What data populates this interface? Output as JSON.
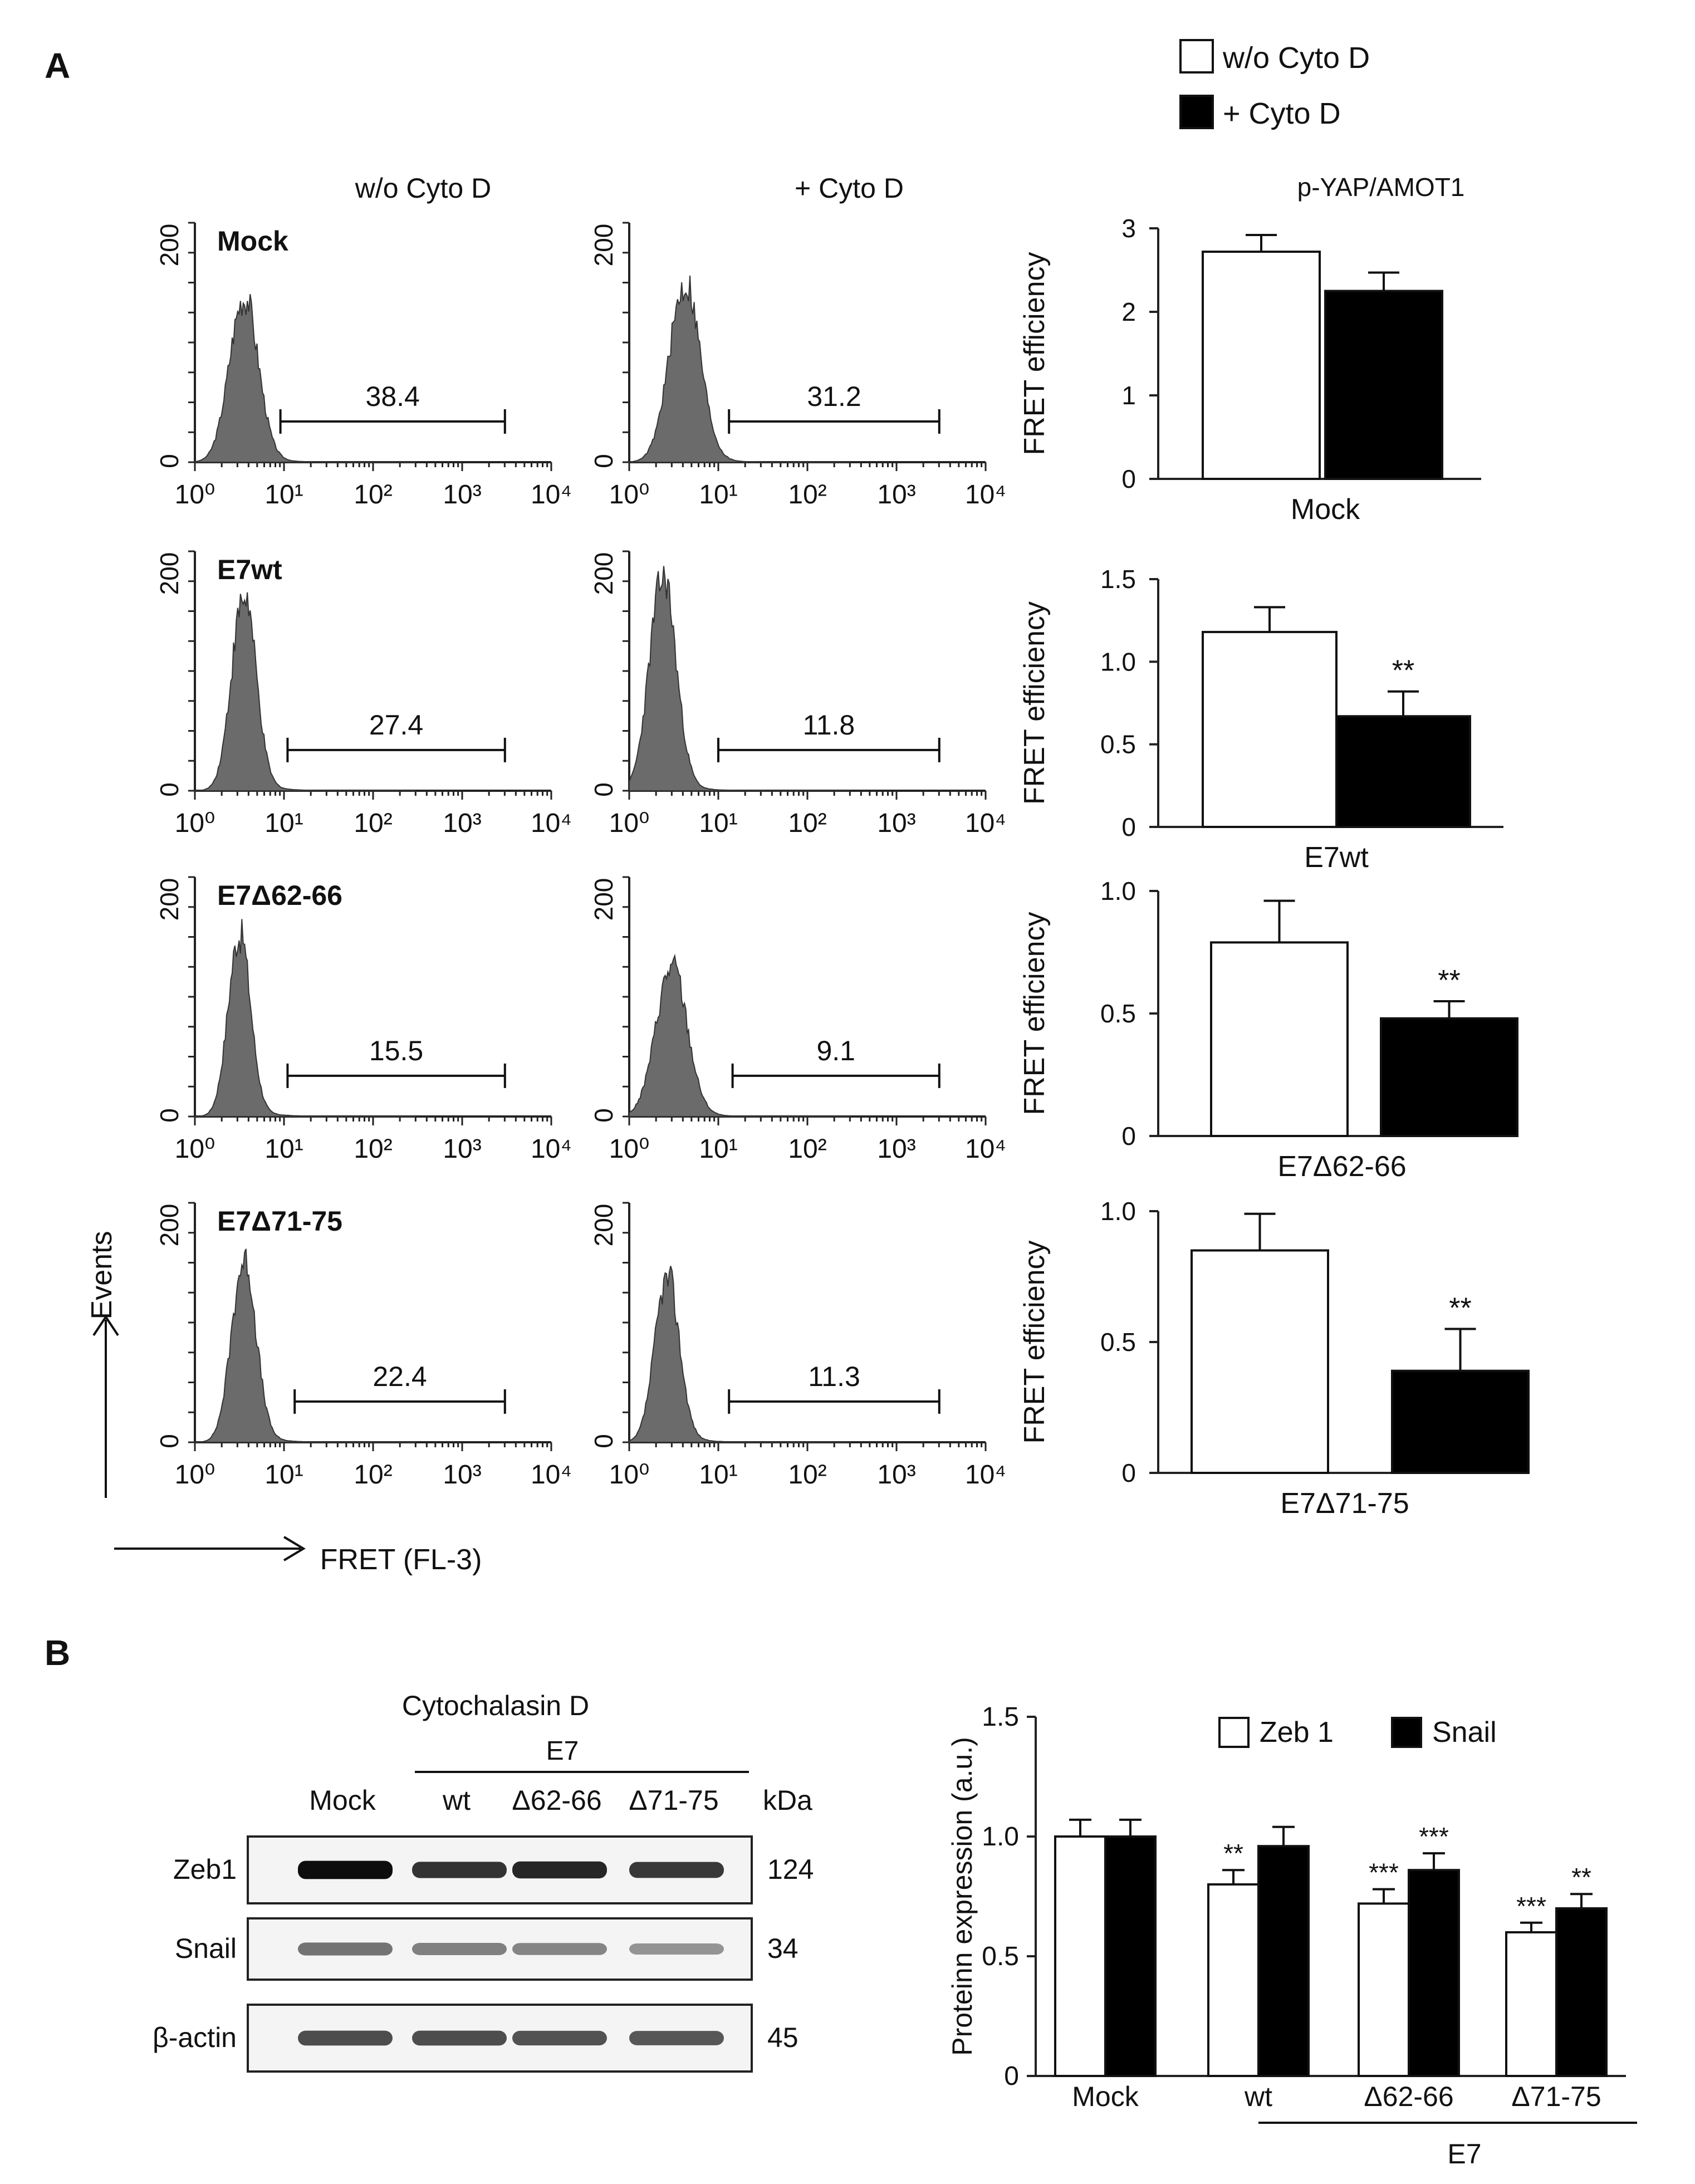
{
  "panel_labels": {
    "a": "A",
    "b": "B"
  },
  "legend_a": {
    "without": "w/o Cyto D",
    "with": "+ Cyto D"
  },
  "flow": {
    "col_titles": [
      "w/o Cyto D",
      "+ Cyto D"
    ],
    "y_ticks": [
      "0",
      "200"
    ],
    "x_ticks": [
      "10⁰",
      "10¹",
      "10²",
      "10³",
      "10⁴"
    ],
    "y_axis_label": "Events",
    "x_axis_label": "FRET (FL-3)",
    "row_labels": [
      "Mock",
      "E7wt",
      "E7Δ62-66",
      "E7Δ71-75"
    ],
    "gate_values": [
      [
        "38.4",
        "31.2"
      ],
      [
        "27.4",
        "11.8"
      ],
      [
        "15.5",
        "9.1"
      ],
      [
        "22.4",
        "11.3"
      ]
    ]
  },
  "colors": {
    "histogram": "#6b6b6b",
    "bar_dark": "#000000",
    "bar_light": "#ffffff",
    "axis": "#222222"
  },
  "chart_data": [
    {
      "type": "bar",
      "title": "p-YAP/AMOT1",
      "ylabel": "FRET efficiency",
      "xlabel": "Mock",
      "categories": [
        "w/o Cyto D",
        "+ Cyto D"
      ],
      "values": [
        2.72,
        2.25
      ],
      "errors": [
        0.2,
        0.22
      ],
      "significance": [
        "",
        ""
      ],
      "ylim": [
        0,
        3
      ],
      "yticks": [
        "0",
        "1",
        "2",
        "3"
      ]
    },
    {
      "type": "bar",
      "ylabel": "FRET efficiency",
      "xlabel": "E7wt",
      "categories": [
        "w/o Cyto D",
        "+ Cyto D"
      ],
      "values": [
        1.18,
        0.67
      ],
      "errors": [
        0.15,
        0.15
      ],
      "significance": [
        "",
        "**"
      ],
      "ylim": [
        0,
        1.5
      ],
      "yticks": [
        "0",
        "0.5",
        "1.0",
        "1.5"
      ]
    },
    {
      "type": "bar",
      "ylabel": "FRET efficiency",
      "xlabel": "E7Δ62-66",
      "categories": [
        "w/o Cyto D",
        "+ Cyto D"
      ],
      "values": [
        0.79,
        0.48
      ],
      "errors": [
        0.17,
        0.07
      ],
      "significance": [
        "",
        "**"
      ],
      "ylim": [
        0,
        1.0
      ],
      "yticks": [
        "0",
        "0.5",
        "1.0"
      ]
    },
    {
      "type": "bar",
      "ylabel": "FRET efficiency",
      "xlabel": "E7Δ71-75",
      "categories": [
        "w/o Cyto D",
        "+ Cyto D"
      ],
      "values": [
        0.85,
        0.39
      ],
      "errors": [
        0.14,
        0.16
      ],
      "significance": [
        "",
        "**"
      ],
      "ylim": [
        0,
        1.0
      ],
      "yticks": [
        "0",
        "0.5",
        "1.0"
      ]
    },
    {
      "type": "bar",
      "ylabel": "Proteinn expression (a.u.)",
      "categories": [
        "Mock",
        "wt",
        "Δ62-66",
        "Δ71-75"
      ],
      "group_label": "E7",
      "series": [
        {
          "name": "Zeb 1",
          "values": [
            1.0,
            0.8,
            0.72,
            0.6
          ],
          "errors": [
            0.07,
            0.06,
            0.06,
            0.04
          ],
          "significance": [
            "",
            "**",
            "***",
            "***"
          ]
        },
        {
          "name": "Snail",
          "values": [
            1.0,
            0.96,
            0.86,
            0.7
          ],
          "errors": [
            0.07,
            0.08,
            0.07,
            0.06
          ],
          "significance": [
            "",
            "",
            "***",
            "**"
          ]
        }
      ],
      "ylim": [
        0,
        1.5
      ],
      "yticks": [
        "0",
        "0.5",
        "1.0",
        "1.5"
      ]
    }
  ],
  "blot": {
    "title": "Cytochalasin D",
    "group_label": "E7",
    "lanes": [
      "Mock",
      "wt",
      "Δ62-66",
      "Δ71-75"
    ],
    "kda_label": "kDa",
    "rows": [
      {
        "name": "Zeb1",
        "kda": "124",
        "intensity": [
          0.95,
          0.8,
          0.85,
          0.78
        ]
      },
      {
        "name": "Snail",
        "kda": "34",
        "intensity": [
          0.55,
          0.5,
          0.48,
          0.42
        ]
      },
      {
        "name": "β-actin",
        "kda": "45",
        "intensity": [
          0.7,
          0.7,
          0.68,
          0.66
        ]
      }
    ]
  }
}
